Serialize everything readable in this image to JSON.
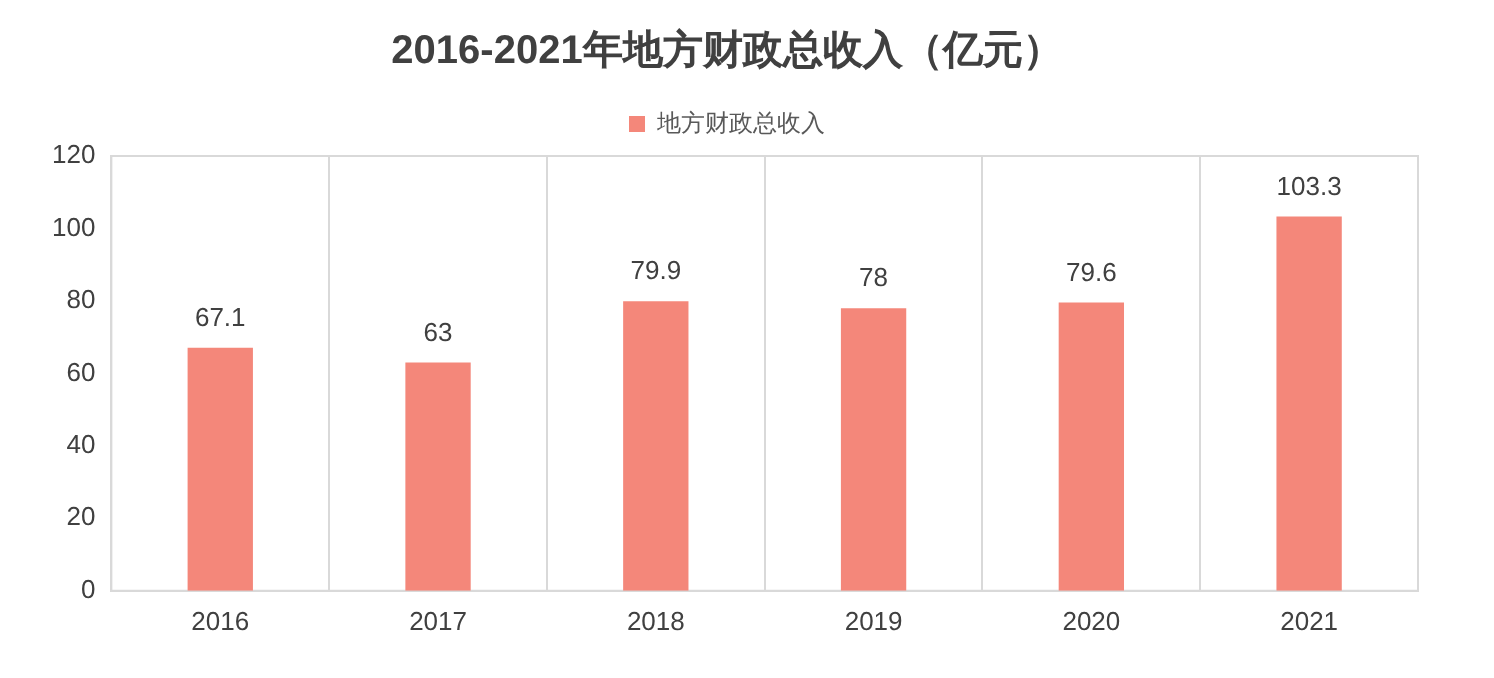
{
  "chart_data": {
    "type": "bar",
    "title": "2016-2021年地方财政总收入（亿元）",
    "categories": [
      "2016",
      "2017",
      "2018",
      "2019",
      "2020",
      "2021"
    ],
    "series": [
      {
        "name": "地方财政总收入",
        "color": "#f4877a",
        "values": [
          67.1,
          63,
          79.9,
          78,
          79.6,
          103.3
        ]
      }
    ],
    "ylim": [
      0,
      120
    ],
    "yticks": [
      0,
      20,
      40,
      60,
      80,
      100,
      120
    ],
    "grid": "x",
    "legend": "top",
    "data_labels": true
  }
}
